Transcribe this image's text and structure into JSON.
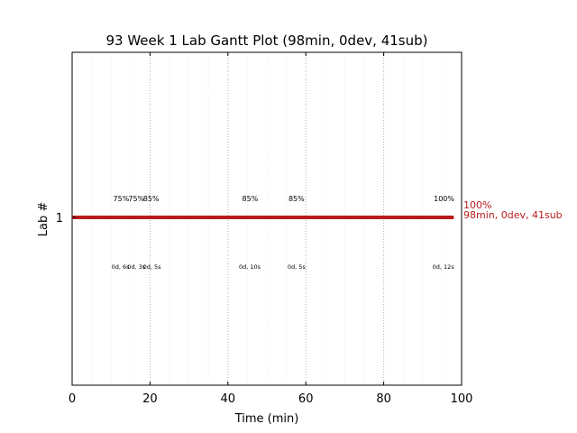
{
  "chart_data": {
    "type": "gantt",
    "title": "93 Week 1 Lab Gantt Plot (98min, 0dev, 41sub)",
    "xlabel": "Time (min)",
    "ylabel": "Lab #",
    "xlim": [
      0,
      100
    ],
    "x_ticks": [
      0,
      20,
      40,
      60,
      80,
      100
    ],
    "y_ticks": [
      1
    ],
    "minor_grid_step": 5,
    "bar": {
      "lab": 1,
      "start": 0,
      "end": 98,
      "color": "#b71c1c"
    },
    "end_labels": [
      "100%",
      "98min, 0dev, 41sub"
    ],
    "annotations_top": [
      {
        "x": 12.6,
        "text": "75%"
      },
      {
        "x": 16.5,
        "text": "75%"
      },
      {
        "x": 20.3,
        "text": "85%"
      },
      {
        "x": 45.7,
        "text": "85%"
      },
      {
        "x": 57.6,
        "text": "85%"
      },
      {
        "x": 95.5,
        "text": "100%"
      }
    ],
    "annotations_bottom": [
      {
        "x": 12.4,
        "text": "0d, 6s"
      },
      {
        "x": 16.5,
        "text": "0d, 3s"
      },
      {
        "x": 20.5,
        "text": "0d, 5s"
      },
      {
        "x": 45.6,
        "text": "0d, 10s"
      },
      {
        "x": 57.6,
        "text": "0d, 5s"
      },
      {
        "x": 95.3,
        "text": "0d, 12s"
      }
    ],
    "grid": "vertical dotted",
    "legend": "none"
  }
}
